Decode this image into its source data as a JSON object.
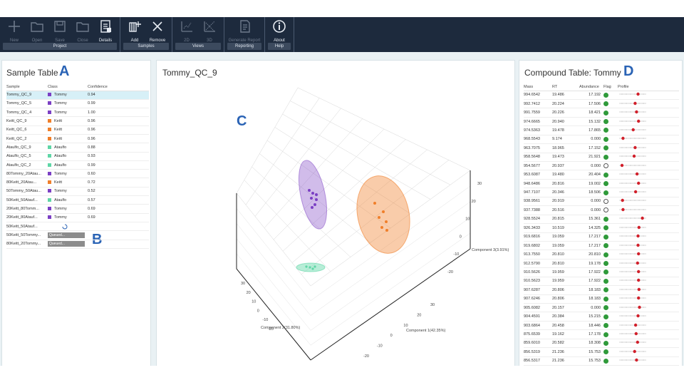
{
  "ribbon": {
    "groups": [
      {
        "label": "Project",
        "buttons": [
          {
            "label": "New",
            "icon": "plus-icon",
            "enabled": false
          },
          {
            "label": "Open",
            "icon": "folder-open-icon",
            "enabled": false
          },
          {
            "label": "Save",
            "icon": "save-icon",
            "enabled": false
          },
          {
            "label": "Close",
            "icon": "folder-close-icon",
            "enabled": false
          },
          {
            "label": "Details",
            "icon": "details-icon",
            "enabled": true
          }
        ]
      },
      {
        "label": "Samples",
        "buttons": [
          {
            "label": "Add",
            "icon": "add-samples-icon",
            "enabled": true
          },
          {
            "label": "Remove",
            "icon": "remove-x-icon",
            "enabled": true
          }
        ]
      },
      {
        "label": "Views",
        "buttons": [
          {
            "label": "2D",
            "icon": "view-2d-icon",
            "enabled": false
          },
          {
            "label": "3D",
            "icon": "view-3d-icon",
            "enabled": false
          }
        ]
      },
      {
        "label": "Reporting",
        "buttons": [
          {
            "label": "Generate Report",
            "icon": "report-icon",
            "enabled": false
          }
        ]
      },
      {
        "label": "Help",
        "buttons": [
          {
            "label": "About",
            "icon": "info-icon",
            "enabled": true
          }
        ]
      }
    ]
  },
  "sample_panel": {
    "title": "Sample Table",
    "letter": "A",
    "letter2": "B",
    "columns": [
      "Sample",
      "Class",
      "Confidence"
    ],
    "rows": [
      {
        "sample": "Tommy_QC_9",
        "class": "Tommy",
        "color": "#7b3fc4",
        "confidence": "0.94",
        "selected": true
      },
      {
        "sample": "Tommy_QC_5",
        "class": "Tommy",
        "color": "#7b3fc4",
        "confidence": "0.99"
      },
      {
        "sample": "Tommy_QC_4",
        "class": "Tommy",
        "color": "#7b3fc4",
        "confidence": "1.00"
      },
      {
        "sample": "Keitt_QC_9",
        "class": "Keitt",
        "color": "#f07f2a",
        "confidence": "0.96"
      },
      {
        "sample": "Keitt_QC_6",
        "class": "Keitt",
        "color": "#f07f2a",
        "confidence": "0.96"
      },
      {
        "sample": "Keitt_QC_2",
        "class": "Keitt",
        "color": "#f07f2a",
        "confidence": "0.96"
      },
      {
        "sample": "Ataulfo_QC_9",
        "class": "Ataulfo",
        "color": "#5fd6a6",
        "confidence": "0.88"
      },
      {
        "sample": "Ataulfo_QC_5",
        "class": "Ataulfo",
        "color": "#5fd6a6",
        "confidence": "0.93"
      },
      {
        "sample": "Ataulfo_QC_2",
        "class": "Ataulfo",
        "color": "#5fd6a6",
        "confidence": "0.99"
      },
      {
        "sample": "80Tommy_20Atau...",
        "class": "Tommy",
        "color": "#7b3fc4",
        "confidence": "0.60"
      },
      {
        "sample": "80Keitt_20Atau...",
        "class": "Keitt",
        "color": "#f07f2a",
        "confidence": "0.72"
      },
      {
        "sample": "50Tommy_50Atau...",
        "class": "Tommy",
        "color": "#7b3fc4",
        "confidence": "0.52"
      },
      {
        "sample": "50Keitt_50Atauf...",
        "class": "Ataulfo",
        "color": "#5fd6a6",
        "confidence": "0.57"
      },
      {
        "sample": "20Keitt_80Tomm...",
        "class": "Tommy",
        "color": "#7b3fc4",
        "confidence": "0.69"
      },
      {
        "sample": "20Keitt_80Atauf...",
        "class": "Tommy",
        "color": "#7b3fc4",
        "confidence": "0.69"
      },
      {
        "sample": "50Keitt_50Atauf...",
        "class": "",
        "spinner": true
      },
      {
        "sample": "50Keitt_50Tommy...",
        "class": "Queued...",
        "queued": true
      },
      {
        "sample": "80Keitt_20Tommy...",
        "class": "Queued...",
        "queued": true
      }
    ]
  },
  "plot_panel": {
    "title": "Tommy_QC_9",
    "letter": "C",
    "axis_labels": {
      "component1": "Component 1(42.35%)",
      "component2": "Component 2(31.80%)",
      "component3": "Component 3(3.91%)"
    },
    "ticks_right": [
      "30",
      "20",
      "10",
      "0",
      "-10",
      "-20"
    ],
    "ticks_left": [
      "30",
      "20",
      "10",
      "0",
      "-10",
      "-20"
    ],
    "ticks_bottom": [
      "-20",
      "-10",
      "0",
      "10",
      "20",
      "30"
    ],
    "clusters": [
      {
        "name": "Tommy",
        "color": "#7b3fc4"
      },
      {
        "name": "Keitt",
        "color": "#f07f2a"
      },
      {
        "name": "Ataulfo",
        "color": "#5fd6a6"
      }
    ]
  },
  "compound_panel": {
    "title": "Compound Table: Tommy",
    "letter": "D",
    "columns": [
      "Mass",
      "RT",
      "Abundance",
      "Flag",
      "Profile"
    ],
    "rows": [
      {
        "mass": "994.6542",
        "rt": "19.486",
        "ab": "17.192",
        "flag": "green",
        "dot": 0.72
      },
      {
        "mass": "992.7412",
        "rt": "20.224",
        "ab": "17.506",
        "flag": "green",
        "dot": 0.6
      },
      {
        "mass": "991.7559",
        "rt": "20.226",
        "ab": "18.421",
        "flag": "green",
        "dot": 0.66
      },
      {
        "mass": "974.6665",
        "rt": "20.940",
        "ab": "15.132",
        "flag": "green",
        "dot": 0.74
      },
      {
        "mass": "974.5363",
        "rt": "19.478",
        "ab": "17.865",
        "flag": "green",
        "dot": 0.52
      },
      {
        "mass": "968.5543",
        "rt": "9.174",
        "ab": "0.000",
        "flag": "green",
        "dot": 0.1
      },
      {
        "mass": "963.7075",
        "rt": "18.965",
        "ab": "17.152",
        "flag": "green",
        "dot": 0.6
      },
      {
        "mass": "958.5648",
        "rt": "19.473",
        "ab": "21.921",
        "flag": "green",
        "dot": 0.56
      },
      {
        "mass": "954.5677",
        "rt": "20.937",
        "ab": "0.000",
        "flag": "empty",
        "dot": 0.06
      },
      {
        "mass": "953.6087",
        "rt": "19.480",
        "ab": "20.404",
        "flag": "green",
        "dot": 0.68
      },
      {
        "mass": "948.6486",
        "rt": "20.816",
        "ab": "19.002",
        "flag": "green",
        "dot": 0.74
      },
      {
        "mass": "947.7107",
        "rt": "20.346",
        "ab": "18.506",
        "flag": "green",
        "dot": 0.62
      },
      {
        "mass": "938.9561",
        "rt": "20.919",
        "ab": "0.000",
        "flag": "empty",
        "dot": 0.08
      },
      {
        "mass": "937.7388",
        "rt": "20.516",
        "ab": "0.000",
        "flag": "empty",
        "dot": 0.1
      },
      {
        "mass": "928.5524",
        "rt": "20.815",
        "ab": "15.361",
        "flag": "green",
        "dot": 0.9
      },
      {
        "mass": "926.3433",
        "rt": "10.519",
        "ab": "14.325",
        "flag": "green",
        "dot": 0.76
      },
      {
        "mass": "919.6816",
        "rt": "19.059",
        "ab": "17.217",
        "flag": "green",
        "dot": 0.72
      },
      {
        "mass": "919.6802",
        "rt": "19.059",
        "ab": "17.217",
        "flag": "green",
        "dot": 0.72
      },
      {
        "mass": "913.7550",
        "rt": "20.810",
        "ab": "20.810",
        "flag": "green",
        "dot": 0.74
      },
      {
        "mass": "912.5790",
        "rt": "20.810",
        "ab": "19.178",
        "flag": "green",
        "dot": 0.7
      },
      {
        "mass": "910.5626",
        "rt": "19.959",
        "ab": "17.922",
        "flag": "green",
        "dot": 0.74
      },
      {
        "mass": "910.5623",
        "rt": "19.959",
        "ab": "17.922",
        "flag": "green",
        "dot": 0.74
      },
      {
        "mass": "907.6287",
        "rt": "20.806",
        "ab": "18.183",
        "flag": "green",
        "dot": 0.76
      },
      {
        "mass": "907.6246",
        "rt": "20.806",
        "ab": "18.183",
        "flag": "green",
        "dot": 0.74
      },
      {
        "mass": "905.6082",
        "rt": "20.157",
        "ab": "0.000",
        "flag": "green",
        "dot": 0.78
      },
      {
        "mass": "904.4591",
        "rt": "20.384",
        "ab": "15.215",
        "flag": "green",
        "dot": 0.72
      },
      {
        "mass": "903.6864",
        "rt": "20.458",
        "ab": "18.446",
        "flag": "green",
        "dot": 0.62
      },
      {
        "mass": "875.6539",
        "rt": "19.162",
        "ab": "17.178",
        "flag": "green",
        "dot": 0.64
      },
      {
        "mass": "859.6010",
        "rt": "20.582",
        "ab": "18.308",
        "flag": "green",
        "dot": 0.7
      },
      {
        "mass": "856.5319",
        "rt": "21.236",
        "ab": "15.753",
        "flag": "green",
        "dot": 0.58
      },
      {
        "mass": "856.5317",
        "rt": "21.236",
        "ab": "15.753",
        "flag": "green",
        "dot": 0.66
      },
      {
        "mass": "846.5606",
        "rt": "20.098",
        "ab": "15.991",
        "flag": "green",
        "dot": 0.68
      }
    ]
  }
}
